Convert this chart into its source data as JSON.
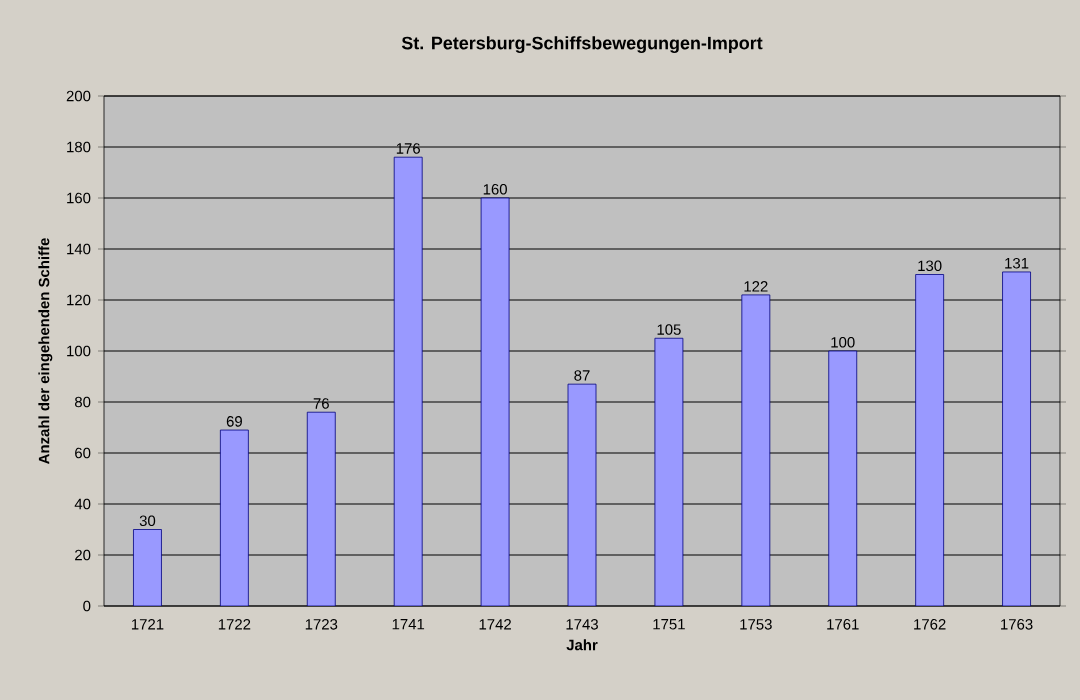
{
  "chart_data": {
    "type": "bar",
    "title": "St. Petersburg-Schiffsbewegungen-Import",
    "xlabel": "Jahr",
    "ylabel": "Anzahl der eingehenden Schiffe",
    "categories": [
      "1721",
      "1722",
      "1723",
      "1741",
      "1742",
      "1743",
      "1751",
      "1753",
      "1761",
      "1762",
      "1763"
    ],
    "values": [
      30,
      69,
      76,
      176,
      160,
      87,
      105,
      122,
      100,
      130,
      131
    ],
    "color": "#9999ff",
    "ylim": [
      0,
      200
    ],
    "yticks": [
      0,
      20,
      40,
      60,
      80,
      100,
      120,
      140,
      160,
      180,
      200
    ],
    "grid": "y",
    "data_labels": true
  }
}
